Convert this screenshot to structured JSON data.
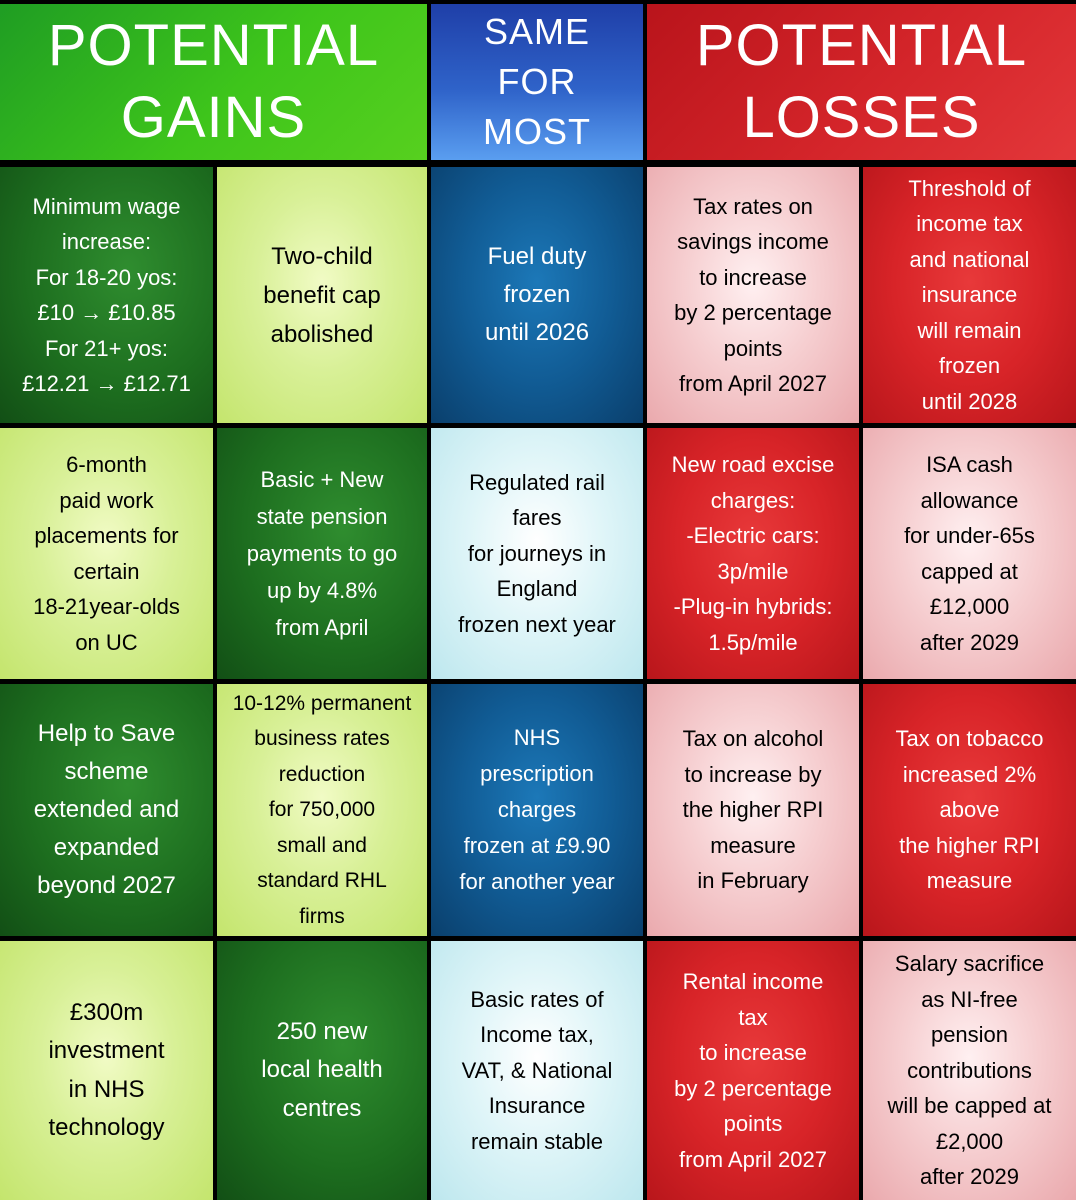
{
  "headers": {
    "gains": [
      "POTENTIAL",
      "GAINS"
    ],
    "same": [
      "SAME",
      "FOR",
      "MOST"
    ],
    "losses": [
      "POTENTIAL",
      "LOSSES"
    ]
  },
  "colors": {
    "gains_header": "#3ec51b",
    "same_header": "#2f63c9",
    "losses_header": "#d4252a",
    "dark_green": "#1d6e1f",
    "light_green": "#d8f097",
    "dark_blue": "#115c95",
    "light_blue": "#dff5f8",
    "pink": "#f6cfd1",
    "red": "#d82428"
  },
  "rows": [
    [
      {
        "text": "Minimum wage\nincrease:\nFor 18-20 yos:\n£10 → £10.85\nFor 21+ yos:\n£12.21 → £12.71"
      },
      {
        "text": "Two-child\nbenefit cap\nabolished"
      },
      {
        "text": "Fuel duty\nfrozen\nuntil 2026"
      },
      {
        "text": "Tax rates on\nsavings income\nto increase\nby 2 percentage\npoints\nfrom April 2027"
      },
      {
        "text": "Threshold of\nincome tax\nand national\ninsurance\nwill remain\nfrozen\nuntil 2028"
      }
    ],
    [
      {
        "text": "6-month\npaid work\nplacements for\ncertain\n18-21year-olds\non UC"
      },
      {
        "text": "Basic + New\nstate pension\npayments to go\nup by 4.8%\nfrom April"
      },
      {
        "text": "Regulated rail\nfares\nfor journeys in\nEngland\nfrozen next year"
      },
      {
        "text": "New road excise\ncharges:\n-Electric cars:\n3p/mile\n-Plug-in hybrids:\n1.5p/mile"
      },
      {
        "text": "ISA cash\nallowance\nfor under-65s\ncapped at\n£12,000\nafter 2029"
      }
    ],
    [
      {
        "text": "Help to Save\nscheme\nextended and\nexpanded\nbeyond 2027"
      },
      {
        "text": "10-12% permanent\nbusiness rates\nreduction\nfor 750,000\nsmall and\nstandard RHL\nfirms"
      },
      {
        "text": "NHS\nprescription\ncharges\nfrozen at £9.90\nfor another year"
      },
      {
        "text": "Tax on alcohol\nto increase by\nthe higher RPI\nmeasure\nin February"
      },
      {
        "text": "Tax on tobacco\nincreased 2%\nabove\nthe higher RPI\nmeasure"
      }
    ],
    [
      {
        "text": "£300m\ninvestment\nin NHS\ntechnology"
      },
      {
        "text": "250 new\nlocal health\ncentres"
      },
      {
        "text": "Basic rates of\nIncome tax,\nVAT, & National\nInsurance\nremain stable"
      },
      {
        "text": "Rental income\ntax\nto increase\nby 2 percentage\npoints\nfrom April 2027"
      },
      {
        "text": "Salary sacrifice\nas NI-free\npension\ncontributions\nwill be capped at\n£2,000\nafter 2029"
      }
    ]
  ]
}
